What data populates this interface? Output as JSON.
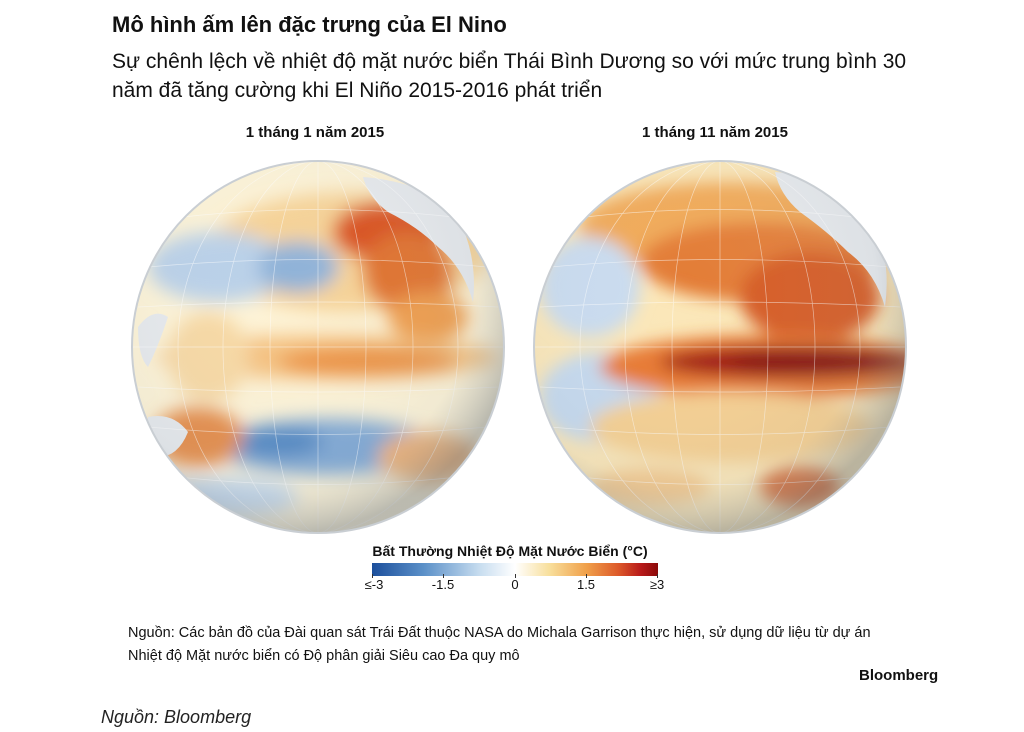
{
  "header": {
    "title": "Mô hình ấm lên đặc trưng của El Nino",
    "subtitle": "Sự chênh lệch về nhiệt độ mặt nước biển Thái Bình Dương so với mức trung bình 30 năm đã tăng cường khi El Niño 2015-2016 phát triển"
  },
  "maps": [
    {
      "label": "1 tháng 1 năm 2015",
      "equatorial_anomaly": "moderate"
    },
    {
      "label": "1 tháng 11 năm 2015",
      "equatorial_anomaly": "strong"
    }
  ],
  "legend": {
    "title": "Bất Thường Nhiệt Độ Mặt Nước Biển (°C)",
    "ticks": [
      "≤-3",
      "-1.5",
      "0",
      "1.5",
      "≥3"
    ],
    "colors": [
      "#1c4f9c",
      "#5b90c8",
      "#c9def0",
      "#ffffff",
      "#f8df9c",
      "#f0a04a",
      "#dd5a2a",
      "#b81a1a",
      "#8b0a0a"
    ]
  },
  "source_note": "Nguồn: Các bản đồ của Đài quan sát Trái Đất thuộc NASA do Michala Garrison thực hiện, sử dụng dữ liệu từ dự án Nhiệt độ Mặt nước biển có Độ phân giải Siêu cao Đa quy mô",
  "brand": "Bloomberg",
  "footer": "Nguồn: Bloomberg"
}
